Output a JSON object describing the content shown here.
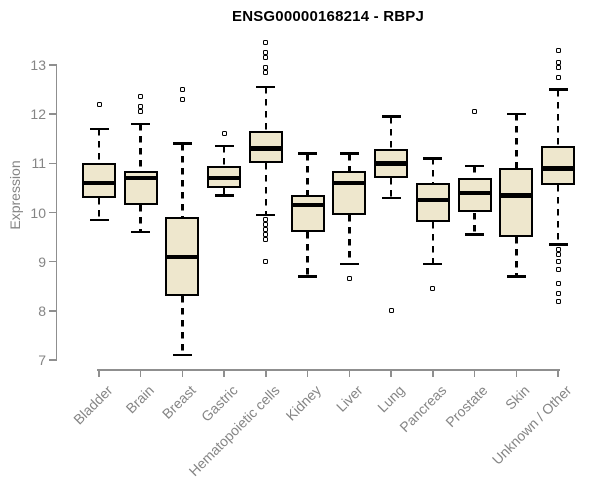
{
  "chart_data": {
    "type": "boxplot",
    "title": "ENSG00000168214 - RBPJ",
    "ylabel": "Expression",
    "xlabel": "",
    "ylim": [
      7,
      13
    ],
    "yticks": [
      7,
      8,
      9,
      10,
      11,
      12,
      13
    ],
    "grid": false,
    "legend": false,
    "boxes": [
      {
        "category": "Bladder",
        "low": 9.85,
        "q1": 10.3,
        "median": 10.6,
        "q3": 11.0,
        "high": 11.7,
        "outliers": [
          12.2
        ]
      },
      {
        "category": "Brain",
        "low": 9.6,
        "q1": 10.15,
        "median": 10.7,
        "q3": 10.85,
        "high": 11.8,
        "outliers": [
          12.35,
          12.15,
          12.05
        ]
      },
      {
        "category": "Breast",
        "low": 7.1,
        "q1": 8.3,
        "median": 9.1,
        "q3": 9.9,
        "high": 11.4,
        "outliers": [
          12.5,
          12.3
        ]
      },
      {
        "category": "Gastric",
        "low": 10.35,
        "q1": 10.5,
        "median": 10.7,
        "q3": 10.95,
        "high": 11.35,
        "outliers": [
          11.6
        ]
      },
      {
        "category": "Hematopoietic cells",
        "low": 9.95,
        "q1": 11.0,
        "median": 11.3,
        "q3": 11.65,
        "high": 12.55,
        "outliers": [
          13.45,
          13.25,
          13.15,
          12.95,
          12.85,
          9.85,
          9.75,
          9.65,
          9.55,
          9.45,
          9.0
        ]
      },
      {
        "category": "Kidney",
        "low": 8.7,
        "q1": 9.6,
        "median": 10.15,
        "q3": 10.35,
        "high": 11.2,
        "outliers": []
      },
      {
        "category": "Liver",
        "low": 8.95,
        "q1": 9.95,
        "median": 10.6,
        "q3": 10.85,
        "high": 11.2,
        "outliers": [
          8.65
        ]
      },
      {
        "category": "Lung",
        "low": 10.3,
        "q1": 10.7,
        "median": 11.0,
        "q3": 11.3,
        "high": 11.95,
        "outliers": [
          8.0
        ]
      },
      {
        "category": "Pancreas",
        "low": 8.95,
        "q1": 9.8,
        "median": 10.25,
        "q3": 10.6,
        "high": 11.1,
        "outliers": [
          8.45
        ]
      },
      {
        "category": "Prostate",
        "low": 9.55,
        "q1": 10.0,
        "median": 10.4,
        "q3": 10.7,
        "high": 10.95,
        "outliers": [
          12.05
        ]
      },
      {
        "category": "Skin",
        "low": 8.7,
        "q1": 9.5,
        "median": 10.35,
        "q3": 10.9,
        "high": 12.0,
        "outliers": []
      },
      {
        "category": "Unknown / Other",
        "low": 9.35,
        "q1": 10.55,
        "median": 10.9,
        "q3": 11.35,
        "high": 12.5,
        "outliers": [
          13.3,
          13.05,
          12.95,
          12.75,
          9.25,
          9.15,
          9.0,
          8.85,
          8.55,
          8.35,
          8.2
        ]
      }
    ]
  },
  "colors": {
    "box_fill": "#EEE7CD",
    "box_line": "#000000",
    "axis": "#8f8f8f",
    "text_gray": "#858585",
    "title_color": "#000000",
    "background": "#ffffff"
  }
}
